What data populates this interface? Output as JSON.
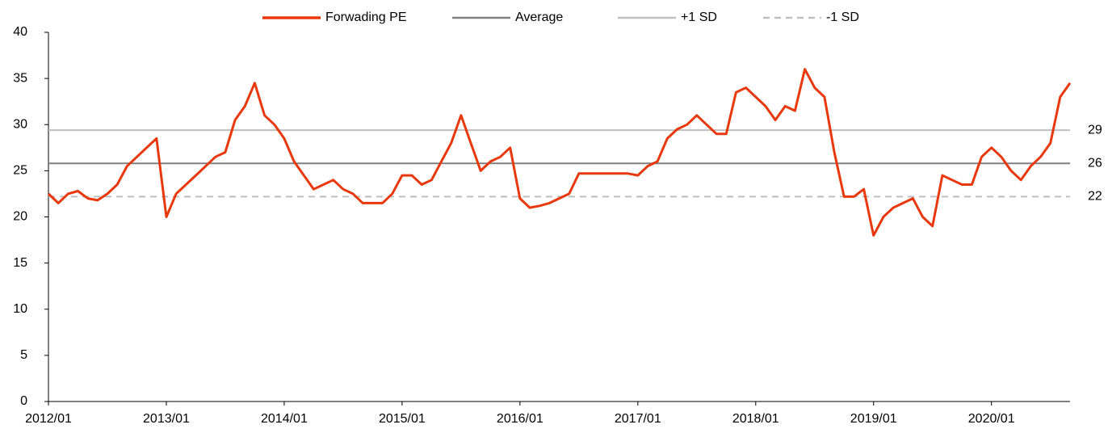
{
  "chart_data": {
    "type": "line",
    "x": [
      "2012/01",
      "2012/02",
      "2012/03",
      "2012/04",
      "2012/05",
      "2012/06",
      "2012/07",
      "2012/08",
      "2012/09",
      "2012/10",
      "2012/11",
      "2012/12",
      "2013/01",
      "2013/02",
      "2013/03",
      "2013/04",
      "2013/05",
      "2013/06",
      "2013/07",
      "2013/08",
      "2013/09",
      "2013/10",
      "2013/11",
      "2013/12",
      "2014/01",
      "2014/02",
      "2014/03",
      "2014/04",
      "2014/05",
      "2014/06",
      "2014/07",
      "2014/08",
      "2014/09",
      "2014/10",
      "2014/11",
      "2014/12",
      "2015/01",
      "2015/02",
      "2015/03",
      "2015/04",
      "2015/05",
      "2015/06",
      "2015/07",
      "2015/08",
      "2015/09",
      "2015/10",
      "2015/11",
      "2015/12",
      "2016/01",
      "2016/02",
      "2016/03",
      "2016/04",
      "2016/05",
      "2016/06",
      "2016/07",
      "2016/08",
      "2016/09",
      "2016/10",
      "2016/11",
      "2016/12",
      "2017/01",
      "2017/02",
      "2017/03",
      "2017/04",
      "2017/05",
      "2017/06",
      "2017/07",
      "2017/08",
      "2017/09",
      "2017/10",
      "2017/11",
      "2017/12",
      "2018/01",
      "2018/02",
      "2018/03",
      "2018/04",
      "2018/05",
      "2018/06",
      "2018/07",
      "2018/08",
      "2018/09",
      "2018/10",
      "2018/11",
      "2018/12",
      "2019/01",
      "2019/02",
      "2019/03",
      "2019/04",
      "2019/05",
      "2019/06",
      "2019/07",
      "2019/08",
      "2019/09",
      "2019/10",
      "2019/11",
      "2019/12",
      "2020/01",
      "2020/02",
      "2020/03",
      "2020/04",
      "2020/05",
      "2020/06",
      "2020/07",
      "2020/08",
      "2020/09"
    ],
    "series": [
      {
        "name": "Forwading PE",
        "color": "#e8380d",
        "values": [
          22.5,
          21.5,
          22.5,
          22.8,
          22,
          21.8,
          22.5,
          23.5,
          25.5,
          26.5,
          27.5,
          28.5,
          20,
          22.5,
          23.5,
          24.5,
          25.5,
          26.5,
          27,
          30.5,
          32,
          34.5,
          31,
          30,
          28.5,
          26,
          24.5,
          23,
          23.5,
          24,
          23,
          22.5,
          21.5,
          21.5,
          21.5,
          22.5,
          24.5,
          24.5,
          23.5,
          24,
          26,
          28,
          31,
          28,
          25,
          26,
          26.5,
          27.5,
          22,
          21,
          21.2,
          21.5,
          22,
          22.5,
          24.7,
          24.7,
          24.7,
          24.7,
          24.7,
          24.7,
          24.5,
          25.5,
          26,
          28.5,
          29.5,
          30,
          31,
          30,
          29,
          29,
          33.5,
          34,
          33,
          32,
          30.5,
          32,
          31.5,
          36,
          34,
          33,
          27,
          22.2,
          22.2,
          23,
          18,
          20,
          21,
          21.5,
          22,
          20,
          19,
          24.5,
          24,
          23.5,
          23.5,
          26.5,
          27.5,
          26.5,
          25,
          24,
          25.5,
          26.5,
          28,
          33,
          34.5
        ]
      }
    ],
    "reference_lines": [
      {
        "name": "Average",
        "value": 25.8,
        "label": "26",
        "color": "#808080",
        "dash": false
      },
      {
        "name": "+1 SD",
        "value": 29.4,
        "label": "29",
        "color": "#bfbfbf",
        "dash": false
      },
      {
        "name": "-1 SD",
        "value": 22.2,
        "label": "22",
        "color": "#bfbfbf",
        "dash": true
      }
    ],
    "ylim": [
      0,
      40
    ],
    "yticks": [
      0,
      5,
      10,
      15,
      20,
      25,
      30,
      35,
      40
    ],
    "grid": false
  }
}
